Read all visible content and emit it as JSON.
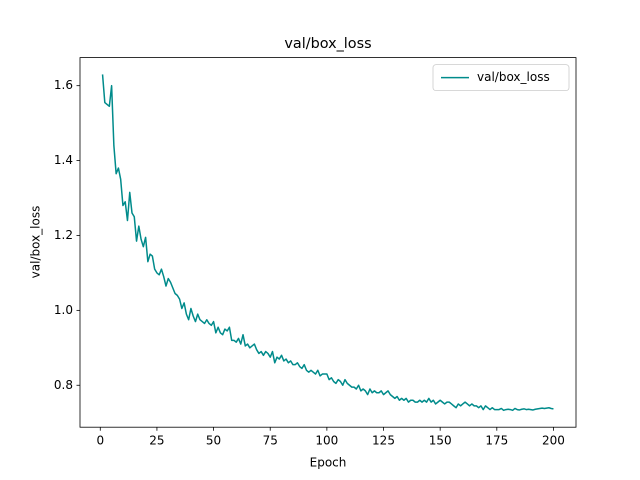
{
  "chart_data": {
    "type": "line",
    "title": "val/box_loss",
    "xlabel": "Epoch",
    "ylabel": "val/box_loss",
    "x": [
      1,
      2,
      3,
      4,
      5,
      6,
      7,
      8,
      9,
      10,
      11,
      12,
      13,
      14,
      15,
      16,
      17,
      18,
      19,
      20,
      21,
      22,
      23,
      24,
      25,
      26,
      27,
      28,
      29,
      30,
      31,
      32,
      33,
      34,
      35,
      36,
      37,
      38,
      39,
      40,
      41,
      42,
      43,
      44,
      45,
      46,
      47,
      48,
      49,
      50,
      51,
      52,
      53,
      54,
      55,
      56,
      57,
      58,
      59,
      60,
      61,
      62,
      63,
      64,
      65,
      66,
      67,
      68,
      69,
      70,
      71,
      72,
      73,
      74,
      75,
      76,
      77,
      78,
      79,
      80,
      81,
      82,
      83,
      84,
      85,
      86,
      87,
      88,
      89,
      90,
      91,
      92,
      93,
      94,
      95,
      96,
      97,
      98,
      99,
      100,
      101,
      102,
      103,
      104,
      105,
      106,
      107,
      108,
      109,
      110,
      111,
      112,
      113,
      114,
      115,
      116,
      117,
      118,
      119,
      120,
      121,
      122,
      123,
      124,
      125,
      126,
      127,
      128,
      129,
      130,
      131,
      132,
      133,
      134,
      135,
      136,
      137,
      138,
      139,
      140,
      141,
      142,
      143,
      144,
      145,
      146,
      147,
      148,
      149,
      150,
      151,
      152,
      153,
      154,
      155,
      156,
      157,
      158,
      159,
      160,
      161,
      162,
      163,
      164,
      165,
      166,
      167,
      168,
      169,
      170,
      171,
      172,
      173,
      174,
      175,
      176,
      177,
      178,
      179,
      180,
      181,
      182,
      183,
      184,
      185,
      186,
      187,
      188,
      189,
      190,
      191,
      192,
      193,
      194,
      195,
      196,
      197,
      198,
      199,
      200
    ],
    "series": [
      {
        "name": "val/box_loss",
        "color": "#008b8b",
        "values": [
          1.63,
          1.555,
          1.55,
          1.545,
          1.6,
          1.44,
          1.365,
          1.38,
          1.35,
          1.28,
          1.29,
          1.24,
          1.315,
          1.26,
          1.25,
          1.185,
          1.225,
          1.19,
          1.17,
          1.195,
          1.13,
          1.15,
          1.145,
          1.11,
          1.1,
          1.095,
          1.11,
          1.09,
          1.065,
          1.085,
          1.075,
          1.06,
          1.045,
          1.04,
          1.03,
          1.005,
          1.02,
          0.99,
          0.975,
          1.005,
          0.985,
          0.97,
          0.99,
          0.975,
          0.97,
          0.965,
          0.975,
          0.965,
          0.96,
          0.97,
          0.94,
          0.955,
          0.94,
          0.935,
          0.95,
          0.945,
          0.955,
          0.92,
          0.92,
          0.915,
          0.925,
          0.91,
          0.935,
          0.905,
          0.91,
          0.9,
          0.905,
          0.91,
          0.895,
          0.885,
          0.89,
          0.88,
          0.89,
          0.885,
          0.875,
          0.89,
          0.86,
          0.875,
          0.87,
          0.88,
          0.865,
          0.87,
          0.86,
          0.865,
          0.855,
          0.855,
          0.86,
          0.85,
          0.845,
          0.855,
          0.84,
          0.835,
          0.84,
          0.835,
          0.83,
          0.84,
          0.825,
          0.83,
          0.83,
          0.83,
          0.815,
          0.82,
          0.81,
          0.805,
          0.815,
          0.81,
          0.8,
          0.815,
          0.805,
          0.8,
          0.795,
          0.795,
          0.79,
          0.8,
          0.785,
          0.79,
          0.785,
          0.775,
          0.79,
          0.78,
          0.785,
          0.78,
          0.78,
          0.785,
          0.775,
          0.78,
          0.785,
          0.775,
          0.77,
          0.765,
          0.77,
          0.76,
          0.765,
          0.76,
          0.765,
          0.755,
          0.76,
          0.76,
          0.755,
          0.755,
          0.76,
          0.755,
          0.76,
          0.755,
          0.765,
          0.755,
          0.76,
          0.75,
          0.755,
          0.76,
          0.755,
          0.75,
          0.755,
          0.755,
          0.75,
          0.745,
          0.74,
          0.75,
          0.745,
          0.75,
          0.755,
          0.75,
          0.745,
          0.75,
          0.745,
          0.745,
          0.74,
          0.745,
          0.735,
          0.745,
          0.74,
          0.735,
          0.74,
          0.735,
          0.735,
          0.735,
          0.738,
          0.733,
          0.735,
          0.736,
          0.735,
          0.733,
          0.738,
          0.735,
          0.734,
          0.736,
          0.737,
          0.735,
          0.736,
          0.735,
          0.734,
          0.736,
          0.737,
          0.738,
          0.739,
          0.738,
          0.739,
          0.74,
          0.738,
          0.737
        ]
      }
    ],
    "xlim": [
      -8.95,
      209.95
    ],
    "xticks": [
      0,
      25,
      50,
      75,
      100,
      125,
      150,
      175,
      200
    ],
    "ylim": [
      0.688,
      1.675
    ],
    "yticks": [
      0.8,
      {
        "value": 1,
        "label": "1.0"
      },
      1.2,
      1.4,
      1.6
    ],
    "legend": "upper right"
  }
}
